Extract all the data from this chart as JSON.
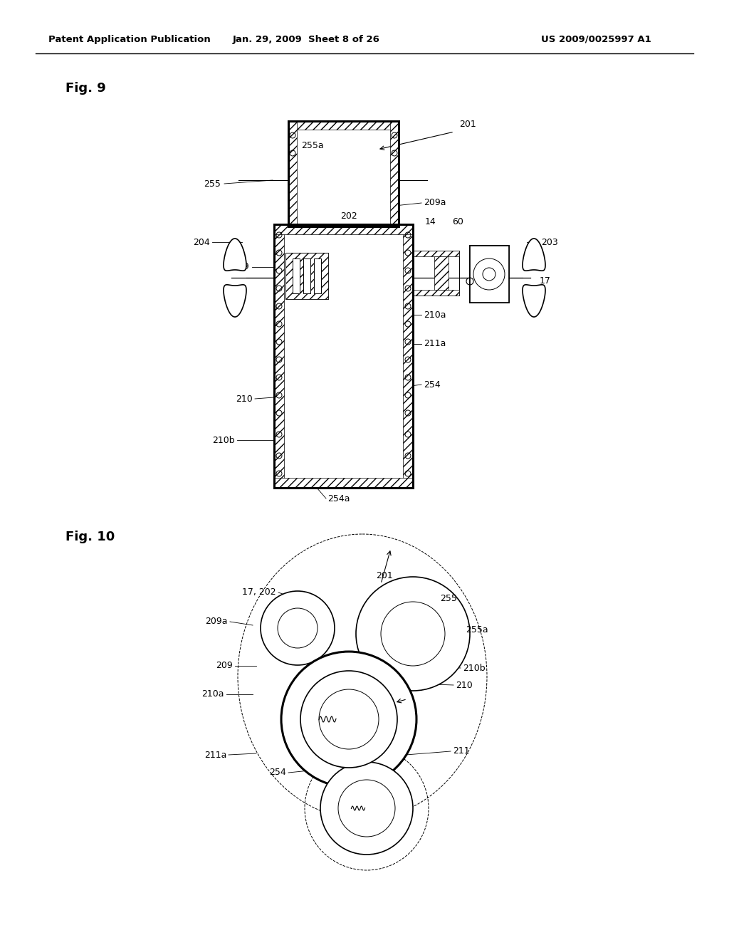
{
  "header_left": "Patent Application Publication",
  "header_center": "Jan. 29, 2009  Sheet 8 of 26",
  "header_right": "US 2009/0025997 A1",
  "fig9_label": "Fig. 9",
  "fig10_label": "Fig. 10",
  "bg_color": "#ffffff"
}
